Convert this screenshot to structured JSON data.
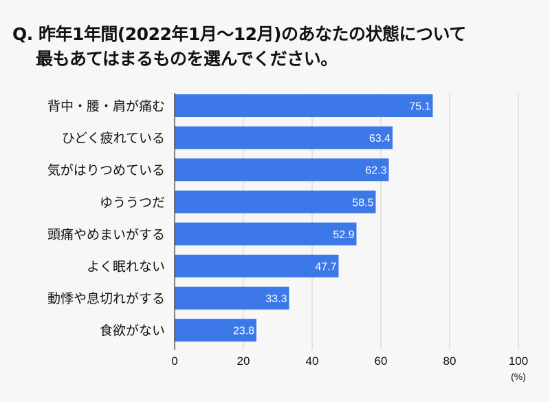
{
  "title": {
    "prefix": "Q.",
    "line1": "昨年1年間(2022年1月～12月)のあなたの状態について",
    "line2": "最もあてはまるものを選んでください。"
  },
  "chart_data": {
    "type": "bar",
    "orientation": "horizontal",
    "categories": [
      "背中・腰・肩が痛む",
      "ひどく疲れている",
      "気がはりつめている",
      "ゆううつだ",
      "頭痛やめまいがする",
      "よく眠れない",
      "動悸や息切れがする",
      "食欲がない"
    ],
    "values": [
      75.1,
      63.4,
      62.3,
      58.5,
      52.9,
      47.7,
      33.3,
      23.8
    ],
    "xlim": [
      0,
      100
    ],
    "xticks": [
      "0",
      "20",
      "40",
      "60",
      "80",
      "100"
    ],
    "xunit": "(%)",
    "grid": true,
    "bar_color": "#3c78e8",
    "label_color": "#ffffff"
  }
}
